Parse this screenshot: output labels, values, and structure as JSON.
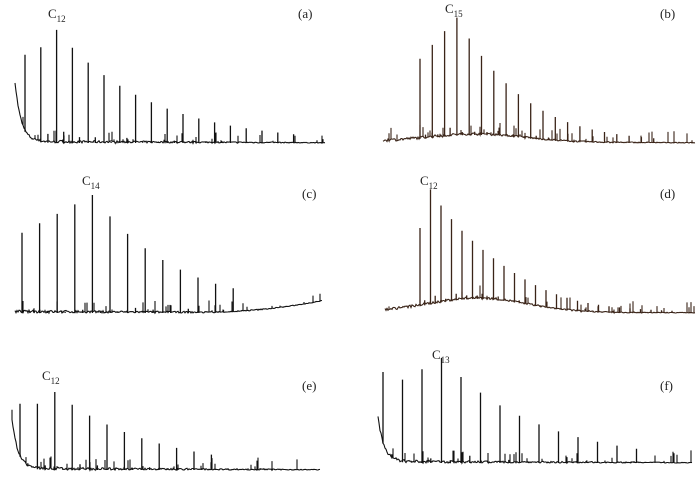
{
  "panels": [
    {
      "tag": "(a)",
      "peak_label": {
        "base": "C",
        "sub": "12"
      }
    },
    {
      "tag": "(b)",
      "peak_label": {
        "base": "C",
        "sub": "15"
      }
    },
    {
      "tag": "(c)",
      "peak_label": {
        "base": "C",
        "sub": "14"
      }
    },
    {
      "tag": "(d)",
      "peak_label": {
        "base": "C",
        "sub": "12"
      }
    },
    {
      "tag": "(e)",
      "peak_label": {
        "base": "C",
        "sub": "12"
      }
    },
    {
      "tag": "(f)",
      "peak_label": {
        "base": "C",
        "sub": "13"
      }
    }
  ]
}
